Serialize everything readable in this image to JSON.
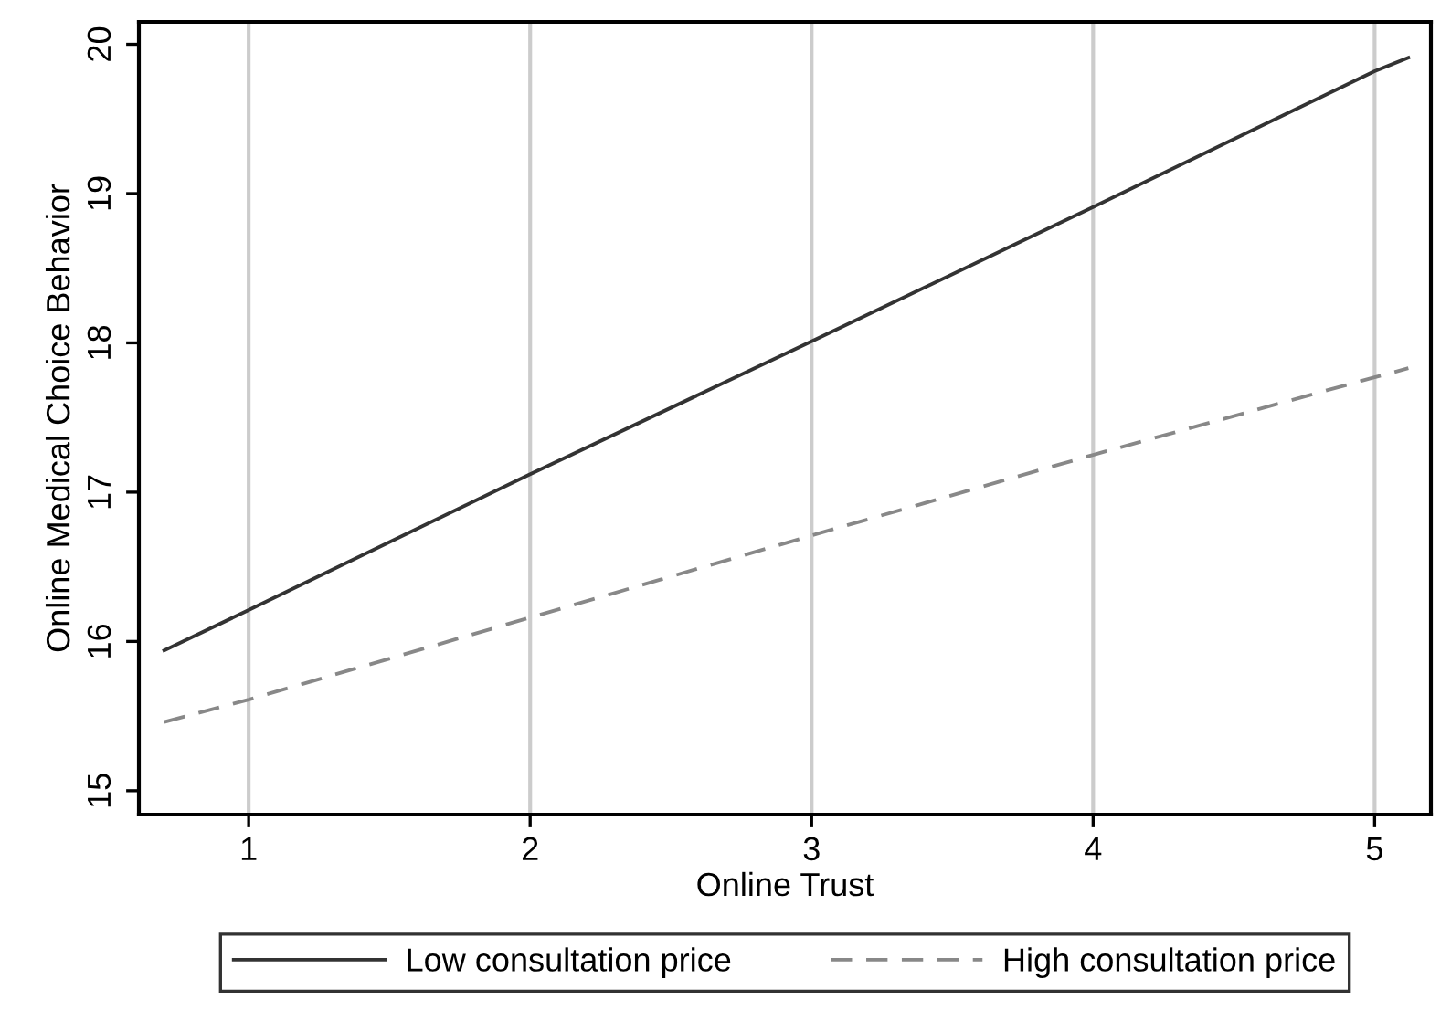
{
  "chart_data": {
    "type": "line",
    "xlabel": "Online Trust",
    "ylabel": "Online Medical Choice Behavior",
    "xlim": [
      0.61,
      5.2
    ],
    "ylim": [
      14.84,
      20.15
    ],
    "xticks": [
      1,
      2,
      3,
      4,
      5
    ],
    "yticks": [
      15,
      16,
      17,
      18,
      19,
      20
    ],
    "grid": "x",
    "legend": "bottom",
    "series": [
      {
        "name": "Low consultation price",
        "color": "#333333",
        "line_style": "solid",
        "x": [
          0.7,
          1,
          2,
          3,
          4,
          5,
          5.12
        ],
        "values": [
          15.94,
          16.21,
          17.12,
          18.01,
          18.91,
          19.82,
          19.91
        ]
      },
      {
        "name": "High consultation price",
        "color": "#888888",
        "line_style": "dashed",
        "x": [
          0.7,
          1,
          2,
          3,
          4,
          5,
          5.12
        ],
        "values": [
          15.46,
          15.61,
          16.16,
          16.71,
          17.25,
          17.77,
          17.83
        ]
      }
    ]
  }
}
